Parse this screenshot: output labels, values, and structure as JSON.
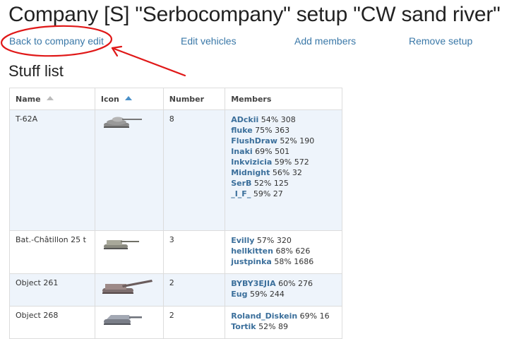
{
  "page": {
    "title": "Company [S] \"Serbocompany\" setup \"CW sand river\""
  },
  "nav": {
    "back_label": "Back to company edit",
    "edit_vehicles_label": "Edit vehicles",
    "add_members_label": "Add members",
    "remove_setup_label": "Remove setup"
  },
  "section": {
    "title": "Stuff list"
  },
  "table": {
    "headers": {
      "name": "Name",
      "icon": "Icon",
      "number": "Number",
      "members": "Members"
    },
    "rows": [
      {
        "name": "T-62A",
        "icon": "tank-t62a-icon",
        "number": "8",
        "members": [
          {
            "name": "ADckii",
            "stat": " 54% 308"
          },
          {
            "name": "fluke",
            "stat": " 75% 363"
          },
          {
            "name": "FlushDraw",
            "stat": " 52% 190"
          },
          {
            "name": "Inaki",
            "stat": " 69% 501"
          },
          {
            "name": "Inkvizicia",
            "stat": " 59% 572"
          },
          {
            "name": "Midnight",
            "stat": " 56% 32"
          },
          {
            "name": "SerB",
            "stat": " 52% 125"
          },
          {
            "name": "_I_F_",
            "stat": " 59% 27"
          }
        ]
      },
      {
        "name": "Bat.-Châtillon 25 t",
        "icon": "tank-batchat-icon",
        "number": "3",
        "members": [
          {
            "name": "Evilly",
            "stat": " 57% 320"
          },
          {
            "name": "hellkitten",
            "stat": " 68% 626"
          },
          {
            "name": "justpinka",
            "stat": " 58% 1686"
          }
        ]
      },
      {
        "name": "Object 261",
        "icon": "artillery-object261-icon",
        "number": "2",
        "members": [
          {
            "name": "BYBY3EJIA",
            "stat": " 60% 276"
          },
          {
            "name": "Eug",
            "stat": " 59% 244"
          }
        ]
      },
      {
        "name": "Object 268",
        "icon": "tank-destroyer-object268-icon",
        "number": "2",
        "members": [
          {
            "name": "Roland_Diskein",
            "stat": " 69% 16"
          },
          {
            "name": "Tortik",
            "stat": " 52% 89"
          }
        ]
      }
    ]
  },
  "colors": {
    "link": "#3a78a8",
    "member_name": "#3b6f9b",
    "row_alt": "#eef4fb",
    "annotation": "#e01818",
    "sort_active": "#4a90c8"
  }
}
